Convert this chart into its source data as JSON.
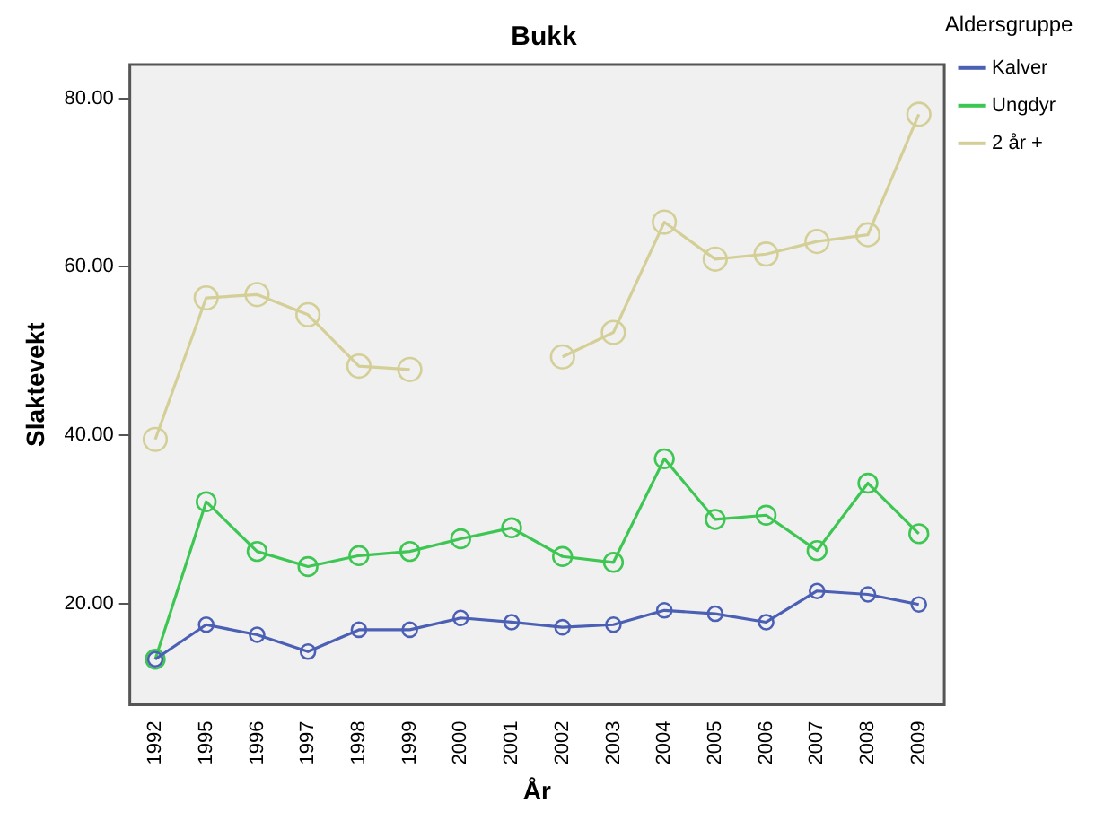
{
  "chart_data": {
    "type": "line",
    "title": "Bukk",
    "xlabel": "År",
    "ylabel": "Slaktevekt",
    "legend_title": "Aldersgruppe",
    "legend": "top right",
    "marker": "circle",
    "grid": false,
    "categories": [
      "1992",
      "1995",
      "1996",
      "1997",
      "1998",
      "1999",
      "2000",
      "2001",
      "2002",
      "2003",
      "2004",
      "2005",
      "2006",
      "2007",
      "2008",
      "2009"
    ],
    "ylim": [
      8,
      84
    ],
    "yticks": [
      {
        "value": 20,
        "label": "20.00"
      },
      {
        "value": 40,
        "label": "40.00"
      },
      {
        "value": 60,
        "label": "60.00"
      },
      {
        "value": 80,
        "label": "80.00"
      }
    ],
    "series": [
      {
        "name": "Kalver",
        "color": "#4b5fb5",
        "values": [
          13.4,
          17.5,
          16.3,
          14.3,
          16.9,
          16.9,
          18.3,
          17.8,
          17.2,
          17.5,
          19.2,
          18.8,
          17.8,
          21.5,
          21.1,
          19.9
        ]
      },
      {
        "name": "Ungdyr",
        "color": "#3ec653",
        "values": [
          13.4,
          32.1,
          26.2,
          24.4,
          25.7,
          26.2,
          27.7,
          29.0,
          25.6,
          24.9,
          37.2,
          30.0,
          30.5,
          26.3,
          34.3,
          28.3
        ]
      },
      {
        "name": "2 år +",
        "color": "#d4cf96",
        "values": [
          39.5,
          56.3,
          56.7,
          54.3,
          48.2,
          47.8,
          null,
          null,
          49.3,
          52.2,
          65.3,
          60.9,
          61.5,
          63.0,
          63.8,
          78.1
        ]
      }
    ]
  }
}
